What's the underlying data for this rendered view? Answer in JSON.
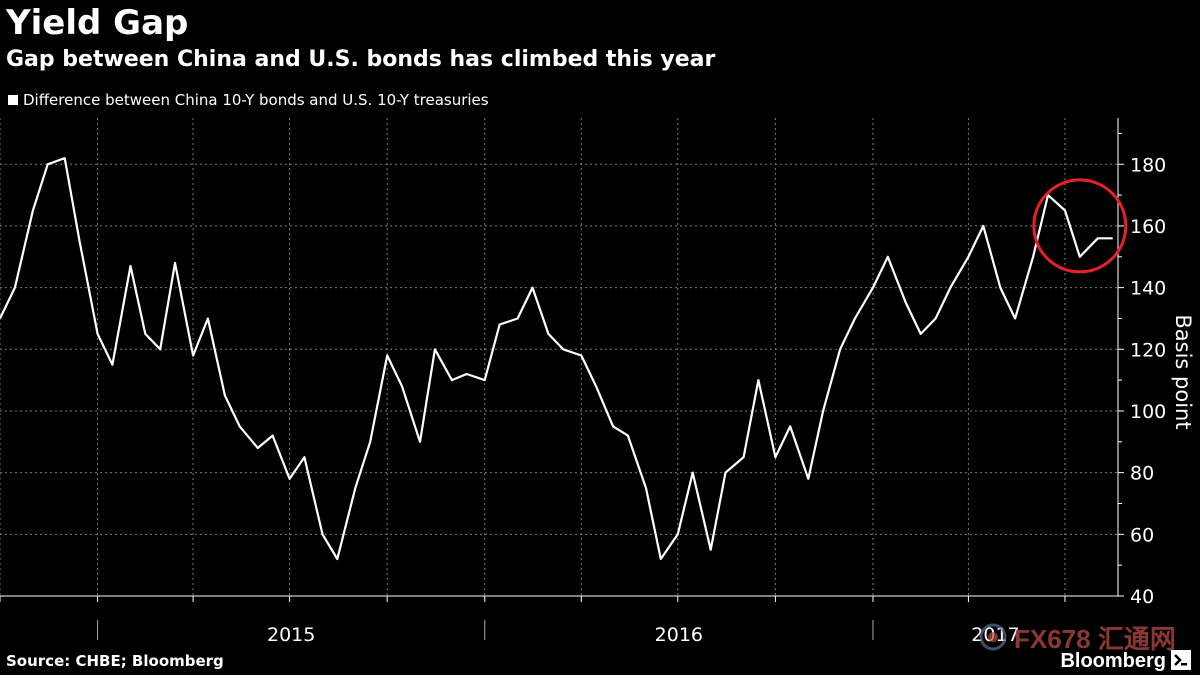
{
  "header": {
    "title": "Yield Gap",
    "subtitle": "Gap between China and U.S. bonds has climbed this year"
  },
  "footer": {
    "source": "Source: CHBE; Bloomberg",
    "brand": "Bloomberg",
    "watermark": "FX678 汇通网"
  },
  "colors": {
    "background": "#000000",
    "line": "#ffffff",
    "highlight_circle": "#e8202a",
    "grid": "#7a7a7a"
  },
  "chart_data": {
    "type": "line",
    "title": "Yield Gap",
    "subtitle": "Gap between China and U.S. bonds has climbed this year",
    "ylabel": "Basis point",
    "xlabel": "",
    "ylim": [
      40,
      195
    ],
    "y_ticks": [
      40,
      60,
      80,
      100,
      120,
      140,
      160,
      180
    ],
    "x_tick_labels": [
      "2015",
      "2016",
      "2017"
    ],
    "xlim": [
      "2014-10-01",
      "2017-08-20"
    ],
    "grid": true,
    "legend_position": "top-left",
    "highlight": {
      "type": "circle",
      "around": "2017-07",
      "color": "#e8202a"
    },
    "series": [
      {
        "name": "Difference between China 10-Y bonds and U.S. 10-Y treasuries",
        "x": [
          "2014-10-01",
          "2014-10-15",
          "2014-11-01",
          "2014-11-15",
          "2014-12-01",
          "2014-12-15",
          "2015-01-01",
          "2015-01-15",
          "2015-02-01",
          "2015-02-15",
          "2015-03-01",
          "2015-03-15",
          "2015-04-01",
          "2015-04-15",
          "2015-05-01",
          "2015-05-15",
          "2015-06-01",
          "2015-06-15",
          "2015-07-01",
          "2015-07-15",
          "2015-08-01",
          "2015-08-15",
          "2015-09-01",
          "2015-09-15",
          "2015-10-01",
          "2015-10-15",
          "2015-11-01",
          "2015-11-15",
          "2015-12-01",
          "2015-12-15",
          "2016-01-01",
          "2016-01-15",
          "2016-02-01",
          "2016-02-15",
          "2016-03-01",
          "2016-03-15",
          "2016-04-01",
          "2016-04-15",
          "2016-05-01",
          "2016-05-15",
          "2016-06-01",
          "2016-06-15",
          "2016-07-01",
          "2016-07-15",
          "2016-08-01",
          "2016-08-15",
          "2016-09-01",
          "2016-09-15",
          "2016-10-01",
          "2016-10-15",
          "2016-11-01",
          "2016-11-15",
          "2016-12-01",
          "2016-12-15",
          "2017-01-01",
          "2017-01-15",
          "2017-02-01",
          "2017-02-15",
          "2017-03-01",
          "2017-03-15",
          "2017-04-01",
          "2017-04-15",
          "2017-05-01",
          "2017-05-15",
          "2017-06-01",
          "2017-06-15",
          "2017-07-01",
          "2017-07-15",
          "2017-08-01",
          "2017-08-15"
        ],
        "values": [
          130,
          140,
          165,
          180,
          182,
          155,
          125,
          115,
          147,
          125,
          120,
          148,
          118,
          130,
          105,
          95,
          88,
          92,
          78,
          85,
          60,
          52,
          75,
          90,
          118,
          108,
          90,
          120,
          110,
          112,
          110,
          128,
          130,
          140,
          125,
          120,
          118,
          108,
          95,
          92,
          75,
          52,
          60,
          80,
          55,
          80,
          85,
          110,
          85,
          95,
          78,
          100,
          120,
          130,
          140,
          150,
          135,
          125,
          130,
          140,
          150,
          160,
          140,
          130,
          150,
          170,
          165,
          150,
          156,
          156
        ]
      }
    ]
  }
}
